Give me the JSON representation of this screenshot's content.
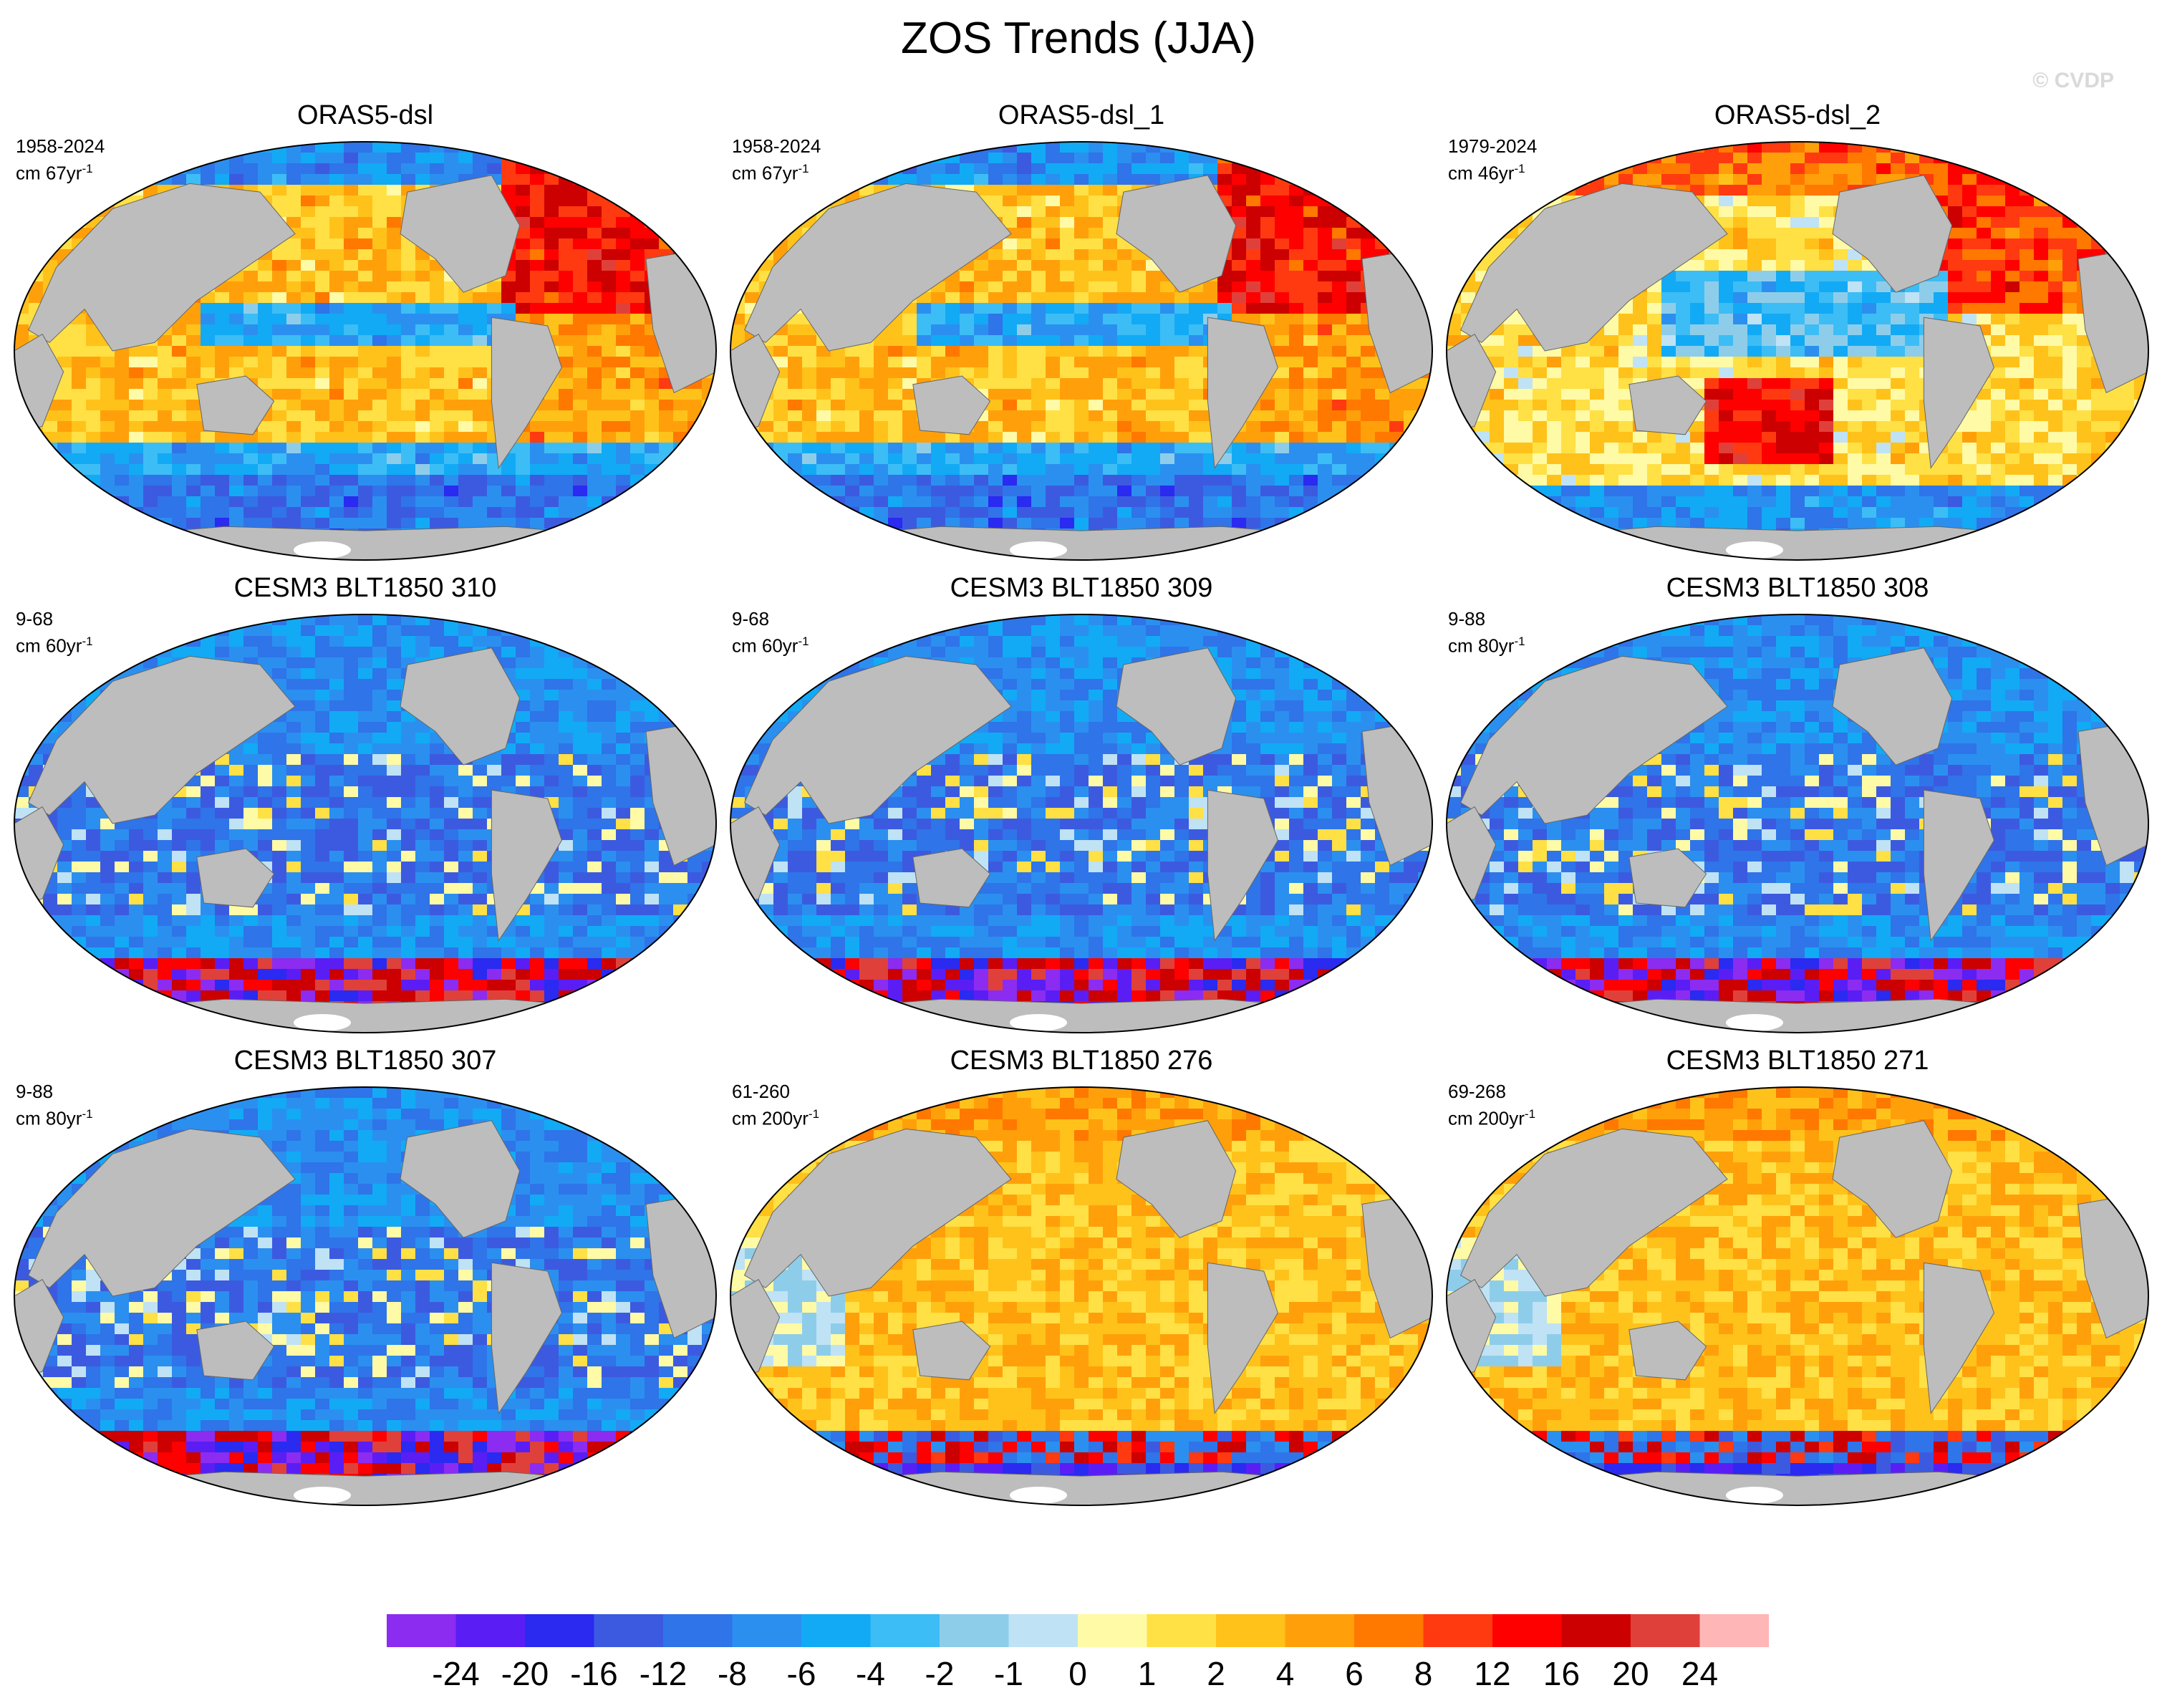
{
  "title": "ZOS Trends (JJA)",
  "watermark": "© CVDP",
  "panels": [
    {
      "name": "ORAS5-dsl",
      "range": "1958-2024",
      "units_base": "cm 67yr",
      "units_exp": "-1",
      "pattern": "oras_a"
    },
    {
      "name": "ORAS5-dsl_1",
      "range": "1958-2024",
      "units_base": "cm 67yr",
      "units_exp": "-1",
      "pattern": "oras_a"
    },
    {
      "name": "ORAS5-dsl_2",
      "range": "1979-2024",
      "units_base": "cm 46yr",
      "units_exp": "-1",
      "pattern": "oras_b"
    },
    {
      "name": "CESM3 BLT1850 310",
      "range": "9-68",
      "units_base": "cm 60yr",
      "units_exp": "-1",
      "pattern": "cesm_neg"
    },
    {
      "name": "CESM3 BLT1850 309",
      "range": "9-68",
      "units_base": "cm 60yr",
      "units_exp": "-1",
      "pattern": "cesm_neg"
    },
    {
      "name": "CESM3 BLT1850 308",
      "range": "9-88",
      "units_base": "cm 80yr",
      "units_exp": "-1",
      "pattern": "cesm_neg"
    },
    {
      "name": "CESM3 BLT1850 307",
      "range": "9-88",
      "units_base": "cm 80yr",
      "units_exp": "-1",
      "pattern": "cesm_neg"
    },
    {
      "name": "CESM3 BLT1850 276",
      "range": "61-260",
      "units_base": "cm 200yr",
      "units_exp": "-1",
      "pattern": "cesm_pos"
    },
    {
      "name": "CESM3 BLT1850 271",
      "range": "69-268",
      "units_base": "cm 200yr",
      "units_exp": "-1",
      "pattern": "cesm_pos"
    }
  ],
  "colorbar": {
    "labels": [
      "-24",
      "-20",
      "-16",
      "-12",
      "-8",
      "-6",
      "-4",
      "-2",
      "-1",
      "0",
      "1",
      "2",
      "4",
      "6",
      "8",
      "12",
      "16",
      "20",
      "24"
    ],
    "colors": [
      "#8b2cf0",
      "#5a1ef5",
      "#2a2af0",
      "#3c5ae0",
      "#2f74e8",
      "#2b8ff0",
      "#12aaf5",
      "#3dbdf5",
      "#8ecdea",
      "#bfe2f5",
      "#fffaa5",
      "#ffe045",
      "#ffc21a",
      "#ffa00a",
      "#ff7800",
      "#ff3a10",
      "#ff0000",
      "#cc0000",
      "#e0403a",
      "#ffb6b6"
    ]
  },
  "colors": {
    "land": "#bdbdbd",
    "ice": "#ffffff"
  }
}
